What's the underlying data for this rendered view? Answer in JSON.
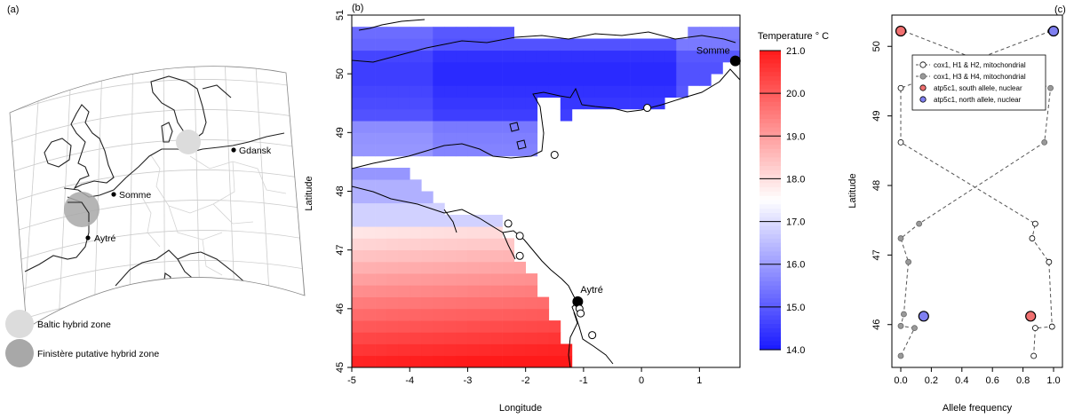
{
  "panels": {
    "a_label": "(a)",
    "b_label": "(b)",
    "c_label": "(c)"
  },
  "map_a": {
    "cities": [
      {
        "name": "Gdansk"
      },
      {
        "name": "Somme"
      },
      {
        "name": "Aytré"
      }
    ],
    "legend": [
      {
        "label": "Baltic hybrid zone",
        "color": "#dcdcdc"
      },
      {
        "label": "Finistère putative hybrid zone",
        "color": "#a8a8a8"
      }
    ]
  },
  "chart_data": [
    {
      "type": "heatmap",
      "xlabel": "Longitude",
      "ylabel": "Latitude",
      "xlim": [
        -5,
        1.7
      ],
      "ylim": [
        45,
        51
      ],
      "xticks": [
        "-5",
        "-4",
        "-3",
        "-2",
        "-1",
        "0",
        "1"
      ],
      "yticks": [
        "45",
        "46",
        "47",
        "48",
        "49",
        "50",
        "51"
      ],
      "colorbar": {
        "title": "Temperature ° C",
        "range": [
          14.0,
          21.0
        ],
        "ticks": [
          "14.0",
          "15.0",
          "16.0",
          "17.0",
          "18.0",
          "19.0",
          "20.0",
          "21.0"
        ],
        "low_color": "#1a1aff",
        "mid_color": "#ffffff",
        "high_color": "#ff1a1a"
      },
      "sites": [
        {
          "name": "Somme",
          "lon": 1.62,
          "lat": 50.22,
          "labeled": true
        },
        {
          "name": "Aytré",
          "lon": -1.1,
          "lat": 46.12,
          "labeled": true
        },
        {
          "name": "",
          "lon": 0.1,
          "lat": 49.42,
          "labeled": false
        },
        {
          "name": "",
          "lon": -1.5,
          "lat": 48.62,
          "labeled": false
        },
        {
          "name": "",
          "lon": -2.3,
          "lat": 47.45,
          "labeled": false
        },
        {
          "name": "",
          "lon": -2.1,
          "lat": 47.24,
          "labeled": false
        },
        {
          "name": "",
          "lon": -2.1,
          "lat": 46.9,
          "labeled": false
        },
        {
          "name": "",
          "lon": -1.07,
          "lat": 46.0,
          "labeled": false
        },
        {
          "name": "",
          "lon": -1.05,
          "lat": 45.92,
          "labeled": false
        },
        {
          "name": "",
          "lon": -0.85,
          "lat": 45.55,
          "labeled": false
        }
      ]
    },
    {
      "type": "scatter",
      "xlabel": "Allele frequency",
      "ylabel": "Latitude",
      "xlim": [
        0,
        1
      ],
      "ylim": [
        45.5,
        50.3
      ],
      "xticks": [
        "0.0",
        "0.2",
        "0.4",
        "0.6",
        "0.8",
        "1.0"
      ],
      "yticks": [
        "46",
        "47",
        "48",
        "49",
        "50"
      ],
      "legend_position": "top-right",
      "series": [
        {
          "name": "cox1, H1 & H2, mitochondrial",
          "color": "#ffffff",
          "points": [
            [
              0.0,
              49.4
            ],
            [
              0.0,
              48.62
            ],
            [
              0.88,
              47.45
            ],
            [
              0.86,
              47.24
            ],
            [
              0.97,
              46.9
            ],
            [
              0.88,
              45.95
            ],
            [
              0.99,
              45.97
            ],
            [
              0.87,
              45.55
            ],
            [
              0.98,
              50.22
            ]
          ]
        },
        {
          "name": "cox1, H3 & H4, mitochondrial",
          "color": "#999999",
          "points": [
            [
              0.02,
              50.22
            ],
            [
              0.98,
              49.4
            ],
            [
              0.94,
              48.62
            ],
            [
              0.12,
              47.45
            ],
            [
              0.0,
              47.24
            ],
            [
              0.05,
              46.9
            ],
            [
              0.0,
              45.98
            ],
            [
              0.09,
              45.95
            ],
            [
              0.0,
              45.55
            ],
            [
              0.02,
              46.15
            ]
          ]
        },
        {
          "name": "atp5c1, south allele, nuclear",
          "color": "#f07070",
          "points": [
            [
              0.0,
              50.22
            ],
            [
              0.85,
              46.12
            ]
          ]
        },
        {
          "name": "atp5c1, north allele, nuclear",
          "color": "#7f7ff0",
          "points": [
            [
              1.0,
              50.22
            ],
            [
              0.15,
              46.12
            ]
          ]
        }
      ]
    }
  ]
}
